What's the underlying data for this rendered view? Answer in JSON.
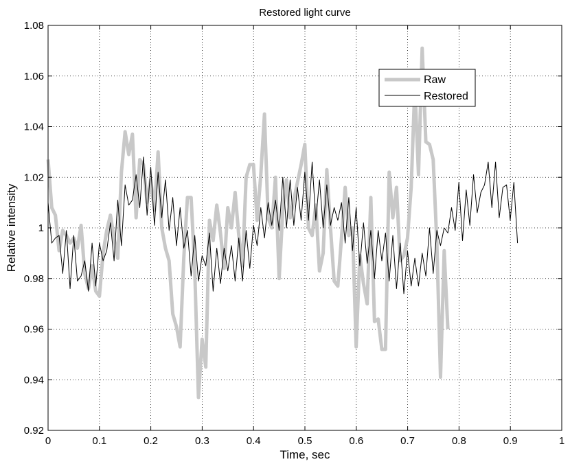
{
  "chart_data": {
    "type": "line",
    "title": "Restored light curve",
    "xlabel": "Time,  sec",
    "ylabel": "Relative  intensity",
    "xlim": [
      0,
      1
    ],
    "ylim": [
      0.92,
      1.08
    ],
    "xticks": [
      "0",
      "0.1",
      "0.2",
      "0.3",
      "0.4",
      "0.5",
      "0.6",
      "0.7",
      "0.8",
      "0.9",
      "1"
    ],
    "yticks": [
      "0.92",
      "0.94",
      "0.96",
      "0.98",
      "1",
      "1.02",
      "1.04",
      "1.06",
      "1.08"
    ],
    "grid": true,
    "legend_position": "top-right",
    "x_step": 0.00714,
    "series": [
      {
        "name": "Raw",
        "color": "#c8c8c8",
        "values": [
          1.027,
          1.008,
          1.005,
          0.991,
          0.999,
          0.997,
          0.994,
          0.996,
          0.992,
          1.001,
          0.982,
          0.976,
          0.985,
          0.975,
          0.973,
          0.99,
          0.999,
          1.005,
          0.996,
          0.988,
          1.022,
          1.038,
          1.029,
          1.037,
          1.004,
          1.027,
          1.025,
          1.01,
          1.019,
          1.007,
          1.03,
          1.0,
          0.992,
          0.987,
          0.966,
          0.961,
          0.953,
          0.988,
          1.012,
          1.012,
          0.983,
          0.933,
          0.956,
          0.945,
          1.003,
          0.995,
          1.009,
          0.998,
          0.984,
          1.008,
          1.0,
          1.014,
          0.997,
          0.985,
          1.02,
          1.025,
          1.025,
          1.003,
          1.021,
          1.045,
          1.004,
          1.0,
          1.02,
          0.98,
          1.007,
          1.019,
          1.004,
          1.011,
          1.018,
          1.025,
          1.033,
          1.0,
          0.997,
          1.009,
          0.983,
          0.99,
          1.023,
          1.0,
          0.979,
          0.977,
          0.996,
          1.016,
          0.997,
          1.0,
          0.953,
          0.989,
          0.978,
          0.97,
          1.012,
          0.963,
          0.964,
          0.952,
          0.952,
          1.022,
          1.004,
          1.016,
          0.987,
          0.989,
          0.996,
          1.016,
          1.056,
          1.021,
          1.071,
          1.034,
          1.033,
          1.027,
          0.994,
          0.941,
          0.991,
          0.96
        ]
      },
      {
        "name": "Restored",
        "color": "#000000",
        "values": [
          1.01,
          0.994,
          0.996,
          0.997,
          0.982,
          0.999,
          0.976,
          0.997,
          0.979,
          0.981,
          0.987,
          0.975,
          0.994,
          0.977,
          0.994,
          0.987,
          0.991,
          1.002,
          0.987,
          1.011,
          0.993,
          1.017,
          1.009,
          1.011,
          1.021,
          1.008,
          1.028,
          1.005,
          1.024,
          1.001,
          1.022,
          1.004,
          1.019,
          0.999,
          1.012,
          0.993,
          1.008,
          0.992,
          0.999,
          0.981,
          0.997,
          0.979,
          0.989,
          0.985,
          0.998,
          0.975,
          0.992,
          0.978,
          0.992,
          0.983,
          0.993,
          0.979,
          0.996,
          0.979,
          0.999,
          0.984,
          1.001,
          0.993,
          1.008,
          0.996,
          1.01,
          1.001,
          1.011,
          0.999,
          1.02,
          1.0,
          1.019,
          1.001,
          1.016,
          1.003,
          1.022,
          1.003,
          1.026,
          1.003,
          1.019,
          1.0,
          1.017,
          1.001,
          1.008,
          1.003,
          1.01,
          0.994,
          1.012,
          0.991,
          1.008,
          0.985,
          1.002,
          0.986,
          0.999,
          0.98,
          0.999,
          0.987,
          0.998,
          0.979,
          0.997,
          0.976,
          0.994,
          0.974,
          0.991,
          0.977,
          0.988,
          0.977,
          0.99,
          0.981,
          1.0,
          0.982,
          0.999,
          0.993,
          1.0,
          0.998,
          1.008,
          0.999,
          1.018,
          0.995,
          1.015,
          1.001,
          1.021,
          1.006,
          1.014,
          1.017,
          1.026,
          1.008,
          1.026,
          1.004,
          1.016,
          1.017,
          1.003,
          1.018,
          0.994
        ]
      }
    ]
  }
}
